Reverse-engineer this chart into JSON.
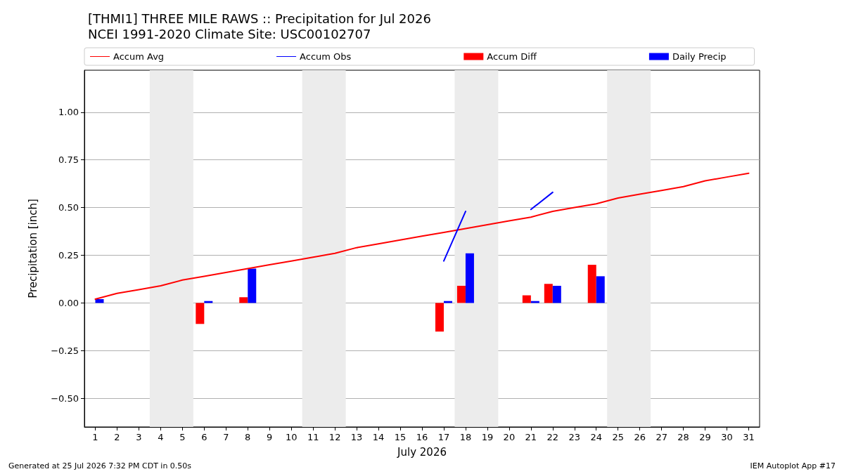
{
  "chart_data": {
    "type": "bar",
    "title": "[THMI1] THREE MILE RAWS :: Precipitation for Jul 2026",
    "subtitle": "NCEI 1991-2020 Climate Site: USC00102707",
    "xlabel": "July 2026",
    "ylabel": "Precipitation [inch]",
    "x": [
      1,
      2,
      3,
      4,
      5,
      6,
      7,
      8,
      9,
      10,
      11,
      12,
      13,
      14,
      15,
      16,
      17,
      18,
      19,
      20,
      21,
      22,
      23,
      24,
      25,
      26,
      27,
      28,
      29,
      30,
      31
    ],
    "series": [
      {
        "name": "Accum Avg",
        "type": "line",
        "color": "#ff0000",
        "values": [
          0.02,
          0.05,
          0.07,
          0.09,
          0.12,
          0.14,
          0.16,
          0.18,
          0.2,
          0.22,
          0.24,
          0.26,
          0.29,
          0.31,
          0.33,
          0.35,
          0.37,
          0.39,
          0.41,
          0.43,
          0.45,
          0.48,
          0.5,
          0.52,
          0.55,
          0.57,
          0.59,
          0.61,
          0.64,
          0.66,
          0.68
        ]
      },
      {
        "name": "Accum Obs",
        "type": "line",
        "color": "#0000ff",
        "values": [
          null,
          null,
          null,
          null,
          null,
          null,
          null,
          null,
          null,
          null,
          null,
          null,
          null,
          null,
          null,
          null,
          0.22,
          0.48,
          null,
          null,
          0.49,
          0.58,
          null,
          null,
          null,
          null,
          null,
          null,
          null,
          null,
          null
        ]
      },
      {
        "name": "Accum Diff",
        "color": "#ff0000",
        "values": [
          null,
          null,
          null,
          null,
          null,
          -0.11,
          null,
          0.03,
          null,
          null,
          null,
          null,
          null,
          null,
          null,
          null,
          -0.15,
          0.09,
          null,
          null,
          0.04,
          0.1,
          null,
          0.2,
          null,
          null,
          null,
          null,
          null,
          null,
          null
        ]
      },
      {
        "name": "Daily Precip",
        "color": "#0000ff",
        "values": [
          0.02,
          null,
          null,
          null,
          null,
          0.01,
          null,
          0.18,
          null,
          null,
          null,
          null,
          null,
          null,
          null,
          null,
          0.01,
          0.26,
          null,
          null,
          0.01,
          0.09,
          null,
          0.14,
          null,
          null,
          null,
          null,
          null,
          null,
          null
        ]
      }
    ],
    "xlim": [
      0.5,
      31.5
    ],
    "xticks": [
      1,
      2,
      3,
      4,
      5,
      6,
      7,
      8,
      9,
      10,
      11,
      12,
      13,
      14,
      15,
      16,
      17,
      18,
      19,
      20,
      21,
      22,
      23,
      24,
      25,
      26,
      27,
      28,
      29,
      30,
      31
    ],
    "ylim": [
      -0.65,
      1.22
    ],
    "yticks": [
      {
        "value": -0.5,
        "label": "−0.50"
      },
      {
        "value": -0.25,
        "label": "−0.25"
      },
      {
        "value": 0,
        "label": "0.00"
      },
      {
        "value": 0.25,
        "label": "0.25"
      },
      {
        "value": 0.5,
        "label": "0.50"
      },
      {
        "value": 0.75,
        "label": "0.75"
      },
      {
        "value": 1.0,
        "label": "1.00"
      }
    ],
    "bands": [
      {
        "axis": "x",
        "from": 3.5,
        "to": 5.5,
        "color": "#ececec"
      },
      {
        "axis": "x",
        "from": 10.5,
        "to": 12.5,
        "color": "#ececec"
      },
      {
        "axis": "x",
        "from": 17.5,
        "to": 19.5,
        "color": "#ececec"
      },
      {
        "axis": "x",
        "from": 24.5,
        "to": 26.5,
        "color": "#ececec"
      }
    ],
    "grid": "y",
    "legend": "top",
    "marker": "none",
    "line_style": "solid",
    "annotations": [
      "Generated at 25 Jul 2026 7:32 PM CDT in 0.50s",
      "IEM Autoplot App #17"
    ]
  }
}
